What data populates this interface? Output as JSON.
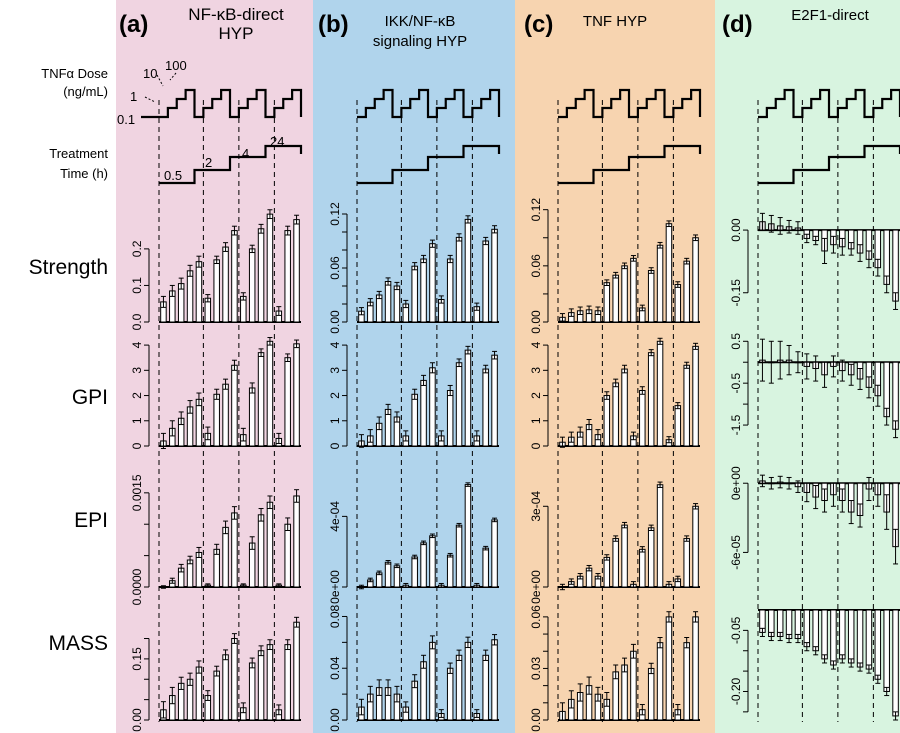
{
  "colors": {
    "panel_a": "#f0d4e1",
    "panel_b": "#b0d4ec",
    "panel_c": "#f7d4b0",
    "panel_d": "#d8f4e0",
    "bar_fill": "#ffffff",
    "bar_fill_negative_small": "#e2e2e2",
    "stroke": "#000000"
  },
  "row_labels": {
    "dose_line1": "TNFα Dose",
    "dose_line2": "(ng/mL)",
    "time_line1": "Treatment",
    "time_line2": "Time (h)",
    "strength": "Strength",
    "gpi": "GPI",
    "epi": "EPI",
    "mass": "MASS"
  },
  "dose_labels": [
    "0.1",
    "1",
    "10",
    "100"
  ],
  "time_labels": [
    "0.5",
    "2",
    "4",
    "24"
  ],
  "panels": [
    {
      "id": "a",
      "letter": "(a)",
      "title_line1": "NF-κB-direct",
      "title_line2": "HYP"
    },
    {
      "id": "b",
      "letter": "(b)",
      "title_line1": "IKK/NF-κB",
      "title_line2": "signaling HYP"
    },
    {
      "id": "c",
      "letter": "(c)",
      "title_line1": "TNF HYP",
      "title_line2": ""
    },
    {
      "id": "d",
      "letter": "(d)",
      "title_line1": "E2F1-direct",
      "title_line2": ""
    }
  ],
  "chart_data": [
    {
      "type": "bar",
      "panel": "a",
      "metric": "Strength",
      "ylim": [
        0,
        0.32
      ],
      "ticks": [
        {
          "v": 0.0,
          "label": "0.0"
        },
        {
          "v": 0.1,
          "label": "0.1"
        },
        {
          "v": 0.2,
          "label": "0.2"
        }
      ],
      "values": [
        0.055,
        0.085,
        0.105,
        0.14,
        0.165,
        0.065,
        0.17,
        0.205,
        0.25,
        0.07,
        0.2,
        0.255,
        0.295,
        0.03,
        0.25,
        0.28
      ],
      "errors": [
        0.015,
        0.015,
        0.015,
        0.015,
        0.015,
        0.01,
        0.01,
        0.012,
        0.012,
        0.01,
        0.01,
        0.012,
        0.012,
        0.012,
        0.012,
        0.012
      ]
    },
    {
      "type": "bar",
      "panel": "a",
      "metric": "GPI",
      "ylim": [
        0,
        4.4
      ],
      "ticks": [
        {
          "v": 0,
          "label": "0"
        },
        {
          "v": 1,
          "label": "1"
        },
        {
          "v": 2,
          "label": "2"
        },
        {
          "v": 3,
          "label": "3"
        },
        {
          "v": 4,
          "label": "4"
        }
      ],
      "values": [
        0.2,
        0.7,
        1.1,
        1.55,
        1.85,
        0.5,
        2.05,
        2.45,
        3.2,
        0.45,
        2.3,
        3.7,
        4.15,
        0.3,
        3.5,
        4.05
      ],
      "errors": [
        0.3,
        0.3,
        0.25,
        0.25,
        0.25,
        0.25,
        0.2,
        0.2,
        0.2,
        0.25,
        0.2,
        0.15,
        0.15,
        0.2,
        0.15,
        0.15
      ]
    },
    {
      "type": "bar",
      "panel": "a",
      "metric": "EPI",
      "ylim": [
        0,
        0.0018
      ],
      "ticks": [
        {
          "v": 0.0,
          "label": "0.0000"
        },
        {
          "v": 0.0005,
          "label": ""
        },
        {
          "v": 0.001,
          "label": ""
        },
        {
          "v": 0.0015,
          "label": "0.0015"
        }
      ],
      "values": [
        0.0,
        0.0001,
        0.0003,
        0.00043,
        0.00055,
        3e-05,
        0.0006,
        0.00095,
        0.00118,
        3e-05,
        0.0007,
        0.00115,
        0.00135,
        3e-05,
        0.001,
        0.00145
      ],
      "errors": [
        2e-05,
        4e-05,
        6e-05,
        6e-05,
        8e-05,
        2e-05,
        8e-05,
        0.0001,
        0.0001,
        2e-05,
        0.0001,
        0.0001,
        0.0001,
        2e-05,
        0.0001,
        0.0001
      ]
    },
    {
      "type": "bar",
      "panel": "a",
      "metric": "MASS",
      "ylim": [
        0,
        0.27
      ],
      "ticks": [
        {
          "v": 0.0,
          "label": "0.00"
        },
        {
          "v": 0.05,
          "label": ""
        },
        {
          "v": 0.1,
          "label": ""
        },
        {
          "v": 0.15,
          "label": "0.15"
        },
        {
          "v": 0.2,
          "label": ""
        }
      ],
      "values": [
        0.025,
        0.06,
        0.09,
        0.1,
        0.13,
        0.06,
        0.12,
        0.16,
        0.2,
        0.03,
        0.14,
        0.17,
        0.185,
        0.025,
        0.185,
        0.24
      ],
      "errors": [
        0.02,
        0.02,
        0.015,
        0.015,
        0.015,
        0.012,
        0.012,
        0.012,
        0.012,
        0.012,
        0.012,
        0.012,
        0.012,
        0.012,
        0.012,
        0.012
      ]
    },
    {
      "type": "bar",
      "panel": "b",
      "metric": "Strength",
      "ylim": [
        0,
        0.13
      ],
      "ticks": [
        {
          "v": 0.0,
          "label": "0.00"
        },
        {
          "v": 0.02,
          "label": ""
        },
        {
          "v": 0.04,
          "label": ""
        },
        {
          "v": 0.06,
          "label": "0.06"
        },
        {
          "v": 0.08,
          "label": ""
        },
        {
          "v": 0.1,
          "label": ""
        },
        {
          "v": 0.12,
          "label": "0.12"
        }
      ],
      "values": [
        0.012,
        0.022,
        0.03,
        0.045,
        0.04,
        0.02,
        0.062,
        0.07,
        0.087,
        0.025,
        0.07,
        0.094,
        0.114,
        0.017,
        0.09,
        0.103
      ],
      "errors": [
        0.004,
        0.004,
        0.004,
        0.004,
        0.004,
        0.004,
        0.004,
        0.004,
        0.004,
        0.004,
        0.004,
        0.004,
        0.004,
        0.004,
        0.004,
        0.004
      ]
    },
    {
      "type": "bar",
      "panel": "b",
      "metric": "GPI",
      "ylim": [
        0,
        4.4
      ],
      "ticks": [
        {
          "v": 0,
          "label": "0"
        },
        {
          "v": 1,
          "label": "1"
        },
        {
          "v": 2,
          "label": "2"
        },
        {
          "v": 3,
          "label": "3"
        },
        {
          "v": 4,
          "label": "4"
        }
      ],
      "values": [
        0.2,
        0.4,
        0.9,
        1.45,
        1.15,
        0.4,
        2.05,
        2.6,
        3.1,
        0.4,
        2.2,
        3.3,
        3.8,
        0.4,
        3.05,
        3.6
      ],
      "errors": [
        0.25,
        0.25,
        0.25,
        0.2,
        0.2,
        0.2,
        0.2,
        0.2,
        0.2,
        0.2,
        0.2,
        0.15,
        0.15,
        0.2,
        0.15,
        0.15
      ]
    },
    {
      "type": "bar",
      "panel": "b",
      "metric": "EPI",
      "ylim": [
        0,
        0.00064
      ],
      "ticks": [
        {
          "v": 0.0,
          "label": "0e+00"
        },
        {
          "v": 0.0004,
          "label": "4e-04"
        }
      ],
      "values": [
        0.0,
        4e-05,
        8e-05,
        0.00014,
        0.00012,
        1e-05,
        0.00017,
        0.00025,
        0.00029,
        1e-05,
        0.00018,
        0.00035,
        0.00058,
        1e-05,
        0.00022,
        0.00038
      ],
      "errors": [
        1e-05,
        1e-05,
        1e-05,
        1e-05,
        1e-05,
        1e-05,
        1e-05,
        1e-05,
        1e-05,
        1e-05,
        1e-05,
        1e-05,
        1e-05,
        1e-05,
        1e-05,
        1e-05
      ]
    },
    {
      "type": "bar",
      "panel": "b",
      "metric": "MASS",
      "ylim": [
        0,
        0.085
      ],
      "ticks": [
        {
          "v": 0.0,
          "label": "0.00"
        },
        {
          "v": 0.02,
          "label": ""
        },
        {
          "v": 0.04,
          "label": "0.04"
        },
        {
          "v": 0.06,
          "label": ""
        },
        {
          "v": 0.08,
          "label": "0.08"
        }
      ],
      "values": [
        0.01,
        0.02,
        0.025,
        0.025,
        0.02,
        0.01,
        0.03,
        0.045,
        0.06,
        0.005,
        0.04,
        0.05,
        0.06,
        0.005,
        0.05,
        0.062
      ],
      "errors": [
        0.006,
        0.006,
        0.006,
        0.006,
        0.006,
        0.004,
        0.005,
        0.005,
        0.005,
        0.003,
        0.004,
        0.004,
        0.004,
        0.003,
        0.004,
        0.004
      ]
    },
    {
      "type": "bar",
      "panel": "c",
      "metric": "Strength",
      "ylim": [
        0,
        0.125
      ],
      "ticks": [
        {
          "v": 0.0,
          "label": "0.00"
        },
        {
          "v": 0.03,
          "label": ""
        },
        {
          "v": 0.06,
          "label": "0.06"
        },
        {
          "v": 0.09,
          "label": ""
        },
        {
          "v": 0.12,
          "label": "0.12"
        }
      ],
      "values": [
        0.005,
        0.01,
        0.012,
        0.013,
        0.012,
        0.042,
        0.05,
        0.06,
        0.068,
        0.015,
        0.055,
        0.082,
        0.105,
        0.04,
        0.065,
        0.09
      ],
      "errors": [
        0.004,
        0.004,
        0.004,
        0.004,
        0.004,
        0.003,
        0.003,
        0.003,
        0.003,
        0.003,
        0.003,
        0.003,
        0.003,
        0.003,
        0.003,
        0.003
      ]
    },
    {
      "type": "bar",
      "panel": "c",
      "metric": "GPI",
      "ylim": [
        0,
        4.4
      ],
      "ticks": [
        {
          "v": 0,
          "label": "0"
        },
        {
          "v": 1,
          "label": "1"
        },
        {
          "v": 2,
          "label": "2"
        },
        {
          "v": 3,
          "label": "3"
        },
        {
          "v": 4,
          "label": "4"
        }
      ],
      "values": [
        0.15,
        0.35,
        0.55,
        0.85,
        0.45,
        2.0,
        2.5,
        3.05,
        0.4,
        2.2,
        3.7,
        4.15,
        0.25,
        1.6,
        3.2,
        3.95
      ],
      "errors": [
        0.2,
        0.2,
        0.2,
        0.2,
        0.2,
        0.15,
        0.15,
        0.15,
        0.15,
        0.15,
        0.12,
        0.12,
        0.12,
        0.12,
        0.12,
        0.12
      ]
    },
    {
      "type": "bar",
      "panel": "c",
      "metric": "EPI",
      "ylim": [
        0,
        0.00042
      ],
      "ticks": [
        {
          "v": 0.0,
          "label": "0e+00"
        },
        {
          "v": 0.0003,
          "label": "3e-04"
        }
      ],
      "values": [
        0.0,
        2e-05,
        4e-05,
        7e-05,
        4e-05,
        0.00011,
        0.00018,
        0.00023,
        1e-05,
        0.00014,
        0.00022,
        0.00038,
        1e-05,
        3e-05,
        0.00018,
        0.0003
      ],
      "errors": [
        1e-05,
        1e-05,
        1e-05,
        1e-05,
        1e-05,
        1e-05,
        1e-05,
        1e-05,
        1e-05,
        1e-05,
        1e-05,
        1e-05,
        1e-05,
        1e-05,
        1e-05,
        1e-05
      ]
    },
    {
      "type": "bar",
      "panel": "c",
      "metric": "MASS",
      "ylim": [
        0,
        0.064
      ],
      "ticks": [
        {
          "v": 0.0,
          "label": "0.00"
        },
        {
          "v": 0.01,
          "label": ""
        },
        {
          "v": 0.02,
          "label": ""
        },
        {
          "v": 0.03,
          "label": "0.03"
        },
        {
          "v": 0.04,
          "label": ""
        },
        {
          "v": 0.05,
          "label": ""
        },
        {
          "v": 0.06,
          "label": "0.06"
        }
      ],
      "values": [
        0.005,
        0.012,
        0.016,
        0.02,
        0.015,
        0.012,
        0.028,
        0.032,
        0.04,
        0.006,
        0.03,
        0.045,
        0.06,
        0.006,
        0.045,
        0.06
      ],
      "errors": [
        0.005,
        0.005,
        0.005,
        0.005,
        0.004,
        0.004,
        0.004,
        0.004,
        0.004,
        0.003,
        0.003,
        0.003,
        0.003,
        0.003,
        0.003,
        0.003
      ]
    },
    {
      "type": "bar",
      "panel": "d",
      "metric": "Strength",
      "ylim": [
        -0.22,
        0.06
      ],
      "ticks": [
        {
          "v": 0.0,
          "label": "0.00"
        },
        {
          "v": -0.15,
          "label": "-0.15"
        }
      ],
      "values": [
        0.02,
        0.015,
        0.01,
        0.008,
        0.005,
        -0.02,
        -0.025,
        -0.05,
        -0.035,
        -0.04,
        -0.045,
        -0.055,
        -0.07,
        -0.09,
        -0.13,
        -0.17
      ],
      "errors": [
        0.02,
        0.02,
        0.02,
        0.015,
        0.015,
        0.01,
        0.01,
        0.03,
        0.02,
        0.02,
        0.015,
        0.02,
        0.02,
        0.02,
        0.02,
        0.02
      ]
    },
    {
      "type": "bar",
      "panel": "d",
      "metric": "GPI",
      "ylim": [
        -2.0,
        0.65
      ],
      "ticks": [
        {
          "v": 0.5,
          "label": "0.5"
        },
        {
          "v": 0.0,
          "label": ""
        },
        {
          "v": -0.5,
          "label": "-0.5"
        },
        {
          "v": -1.0,
          "label": ""
        },
        {
          "v": -1.5,
          "label": "-1.5"
        }
      ],
      "values": [
        0.05,
        0.0,
        0.05,
        0.05,
        0.0,
        -0.1,
        -0.15,
        -0.3,
        -0.1,
        -0.2,
        -0.3,
        -0.4,
        -0.6,
        -0.8,
        -1.3,
        -1.6
      ],
      "errors": [
        0.5,
        0.5,
        0.45,
        0.35,
        0.25,
        0.3,
        0.3,
        0.3,
        0.25,
        0.25,
        0.25,
        0.25,
        0.25,
        0.25,
        0.2,
        0.2
      ]
    },
    {
      "type": "bar",
      "panel": "d",
      "metric": "EPI",
      "ylim": [
        -9e-05,
        8e-06
      ],
      "ticks": [
        {
          "v": 0.0,
          "label": "0e+00"
        },
        {
          "v": -6e-05,
          "label": "-6e-05"
        }
      ],
      "values": [
        2e-06,
        0.0,
        1e-06,
        0.0,
        -3e-06,
        -8e-06,
        -1.2e-05,
        -1.5e-05,
        -1e-05,
        -1.5e-05,
        -2.5e-05,
        -2.8e-05,
        -5e-06,
        -1e-05,
        -2.5e-05,
        -5.5e-05
      ],
      "errors": [
        5e-06,
        5e-06,
        5e-06,
        5e-06,
        5e-06,
        8e-06,
        1e-05,
        1e-05,
        1e-05,
        1e-05,
        1e-05,
        1e-05,
        1e-05,
        1e-05,
        1.5e-05,
        1.5e-05
      ]
    },
    {
      "type": "bar",
      "panel": "d",
      "metric": "MASS",
      "ylim": [
        -0.27,
        0.0
      ],
      "ticks": [
        {
          "v": -0.05,
          "label": "-0.05"
        },
        {
          "v": -0.1,
          "label": ""
        },
        {
          "v": -0.15,
          "label": ""
        },
        {
          "v": -0.2,
          "label": "-0.20"
        },
        {
          "v": -0.25,
          "label": ""
        }
      ],
      "values": [
        -0.055,
        -0.065,
        -0.065,
        -0.07,
        -0.07,
        -0.09,
        -0.1,
        -0.12,
        -0.135,
        -0.12,
        -0.13,
        -0.14,
        -0.145,
        -0.17,
        -0.2,
        -0.26
      ],
      "errors": [
        0.01,
        0.01,
        0.01,
        0.01,
        0.01,
        0.01,
        0.01,
        0.01,
        0.01,
        0.01,
        0.01,
        0.01,
        0.01,
        0.01,
        0.01,
        0.01
      ]
    }
  ]
}
